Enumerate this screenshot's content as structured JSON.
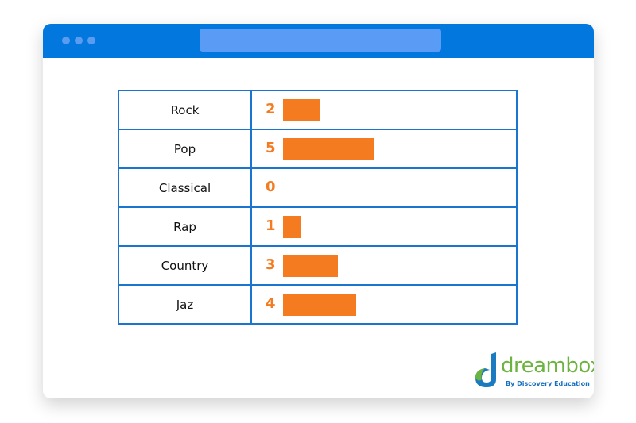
{
  "colors": {
    "header": "#0277de",
    "border": "#1a75d1",
    "bar": "#f47b20"
  },
  "logo": {
    "text": "dreambox",
    "subtitle": "By Discovery Education"
  },
  "chart_data": {
    "type": "table",
    "categories": [
      "Rock",
      "Pop",
      "Classical",
      "Rap",
      "Country",
      "Jaz"
    ],
    "values": [
      2,
      5,
      0,
      1,
      3,
      4
    ]
  }
}
